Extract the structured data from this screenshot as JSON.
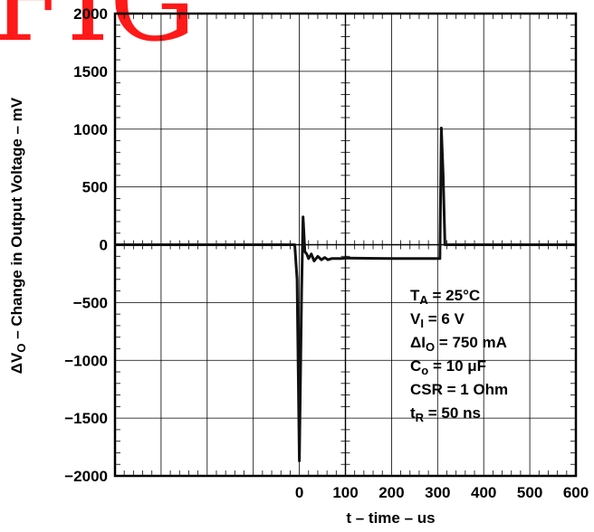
{
  "watermark": "FIG",
  "chart_data": {
    "type": "line",
    "title": "",
    "xlabel": "t – time – us",
    "ylabel": "ΔVO – Change in Output Voltage – mV",
    "xlim": [
      -400,
      600
    ],
    "ylim": [
      -2000,
      2000
    ],
    "x_ticks": [
      0,
      100,
      200,
      300,
      400,
      500,
      600
    ],
    "y_ticks": [
      2000,
      1500,
      1000,
      500,
      0,
      -500,
      -1000,
      -1500,
      -2000
    ],
    "grid": true,
    "series": [
      {
        "name": "",
        "color": "#111111",
        "x": [
          -400,
          -10,
          -5,
          0,
          5,
          8,
          12,
          16,
          20,
          26,
          32,
          40,
          48,
          55,
          62,
          70,
          80,
          90,
          100,
          200,
          300,
          305,
          308,
          312,
          316,
          320,
          330,
          400,
          500,
          600
        ],
        "y": [
          0,
          0,
          -300,
          -1870,
          -400,
          240,
          -60,
          -80,
          -120,
          -80,
          -140,
          -100,
          -130,
          -110,
          -130,
          -120,
          -120,
          -120,
          -115,
          -120,
          -120,
          -120,
          1010,
          600,
          0,
          0,
          0,
          0,
          0,
          0
        ]
      }
    ],
    "annotations": [
      {
        "main": "T",
        "sub": "A",
        "rest": " = 25°C"
      },
      {
        "main": "V",
        "sub": "I",
        "rest": " = 6 V"
      },
      {
        "main": "ΔI",
        "sub": "O",
        "rest": " = 750 mA"
      },
      {
        "main": "C",
        "sub": "o",
        "rest": " = 10 μF"
      },
      {
        "main": "CSR = 1 Ohm",
        "sub": "",
        "rest": ""
      },
      {
        "main": "t",
        "sub": "R",
        "rest": " = 50 ns"
      }
    ]
  }
}
